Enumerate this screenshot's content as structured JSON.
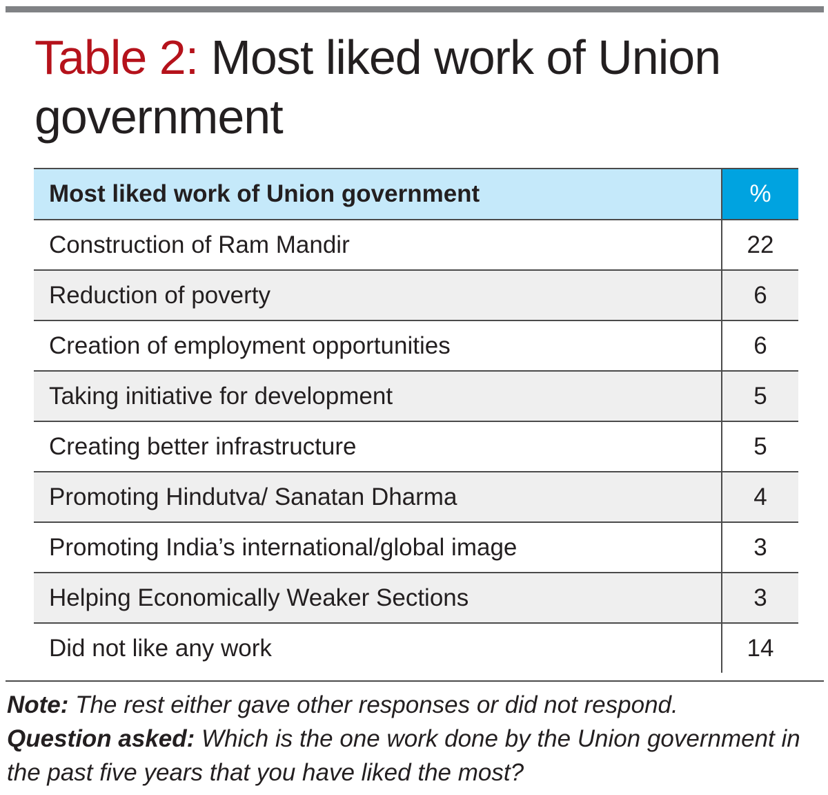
{
  "title": {
    "label": "Table 2:",
    "text": "Most liked work of Union government"
  },
  "chart_data": {
    "type": "table",
    "columns": [
      "Most liked work of Union government",
      "%"
    ],
    "rows": [
      {
        "item": "Construction of Ram Mandir",
        "value": "22"
      },
      {
        "item": "Reduction of poverty",
        "value": "6"
      },
      {
        "item": "Creation of employment opportunities",
        "value": "6"
      },
      {
        "item": "Taking initiative for development",
        "value": "5"
      },
      {
        "item": "Creating better infrastructure",
        "value": "5"
      },
      {
        "item": "Promoting Hindutva/ Sanatan Dharma",
        "value": "4"
      },
      {
        "item": "Promoting India’s international/global image",
        "value": "3"
      },
      {
        "item": "Helping Economically Weaker Sections",
        "value": "3"
      },
      {
        "item": "Did not like any work",
        "value": "14"
      }
    ]
  },
  "notes": {
    "note_label": "Note:",
    "note_text": "The rest either gave other responses or did not respond.",
    "question_label": "Question asked:",
    "question_text": "Which is the one work done by the Union government in the past five years that you have liked the most?"
  },
  "colors": {
    "title_label": "#b5121b",
    "header_light": "#c5e9fa",
    "header_accent": "#00a3e0",
    "row_shade": "#efefef"
  }
}
